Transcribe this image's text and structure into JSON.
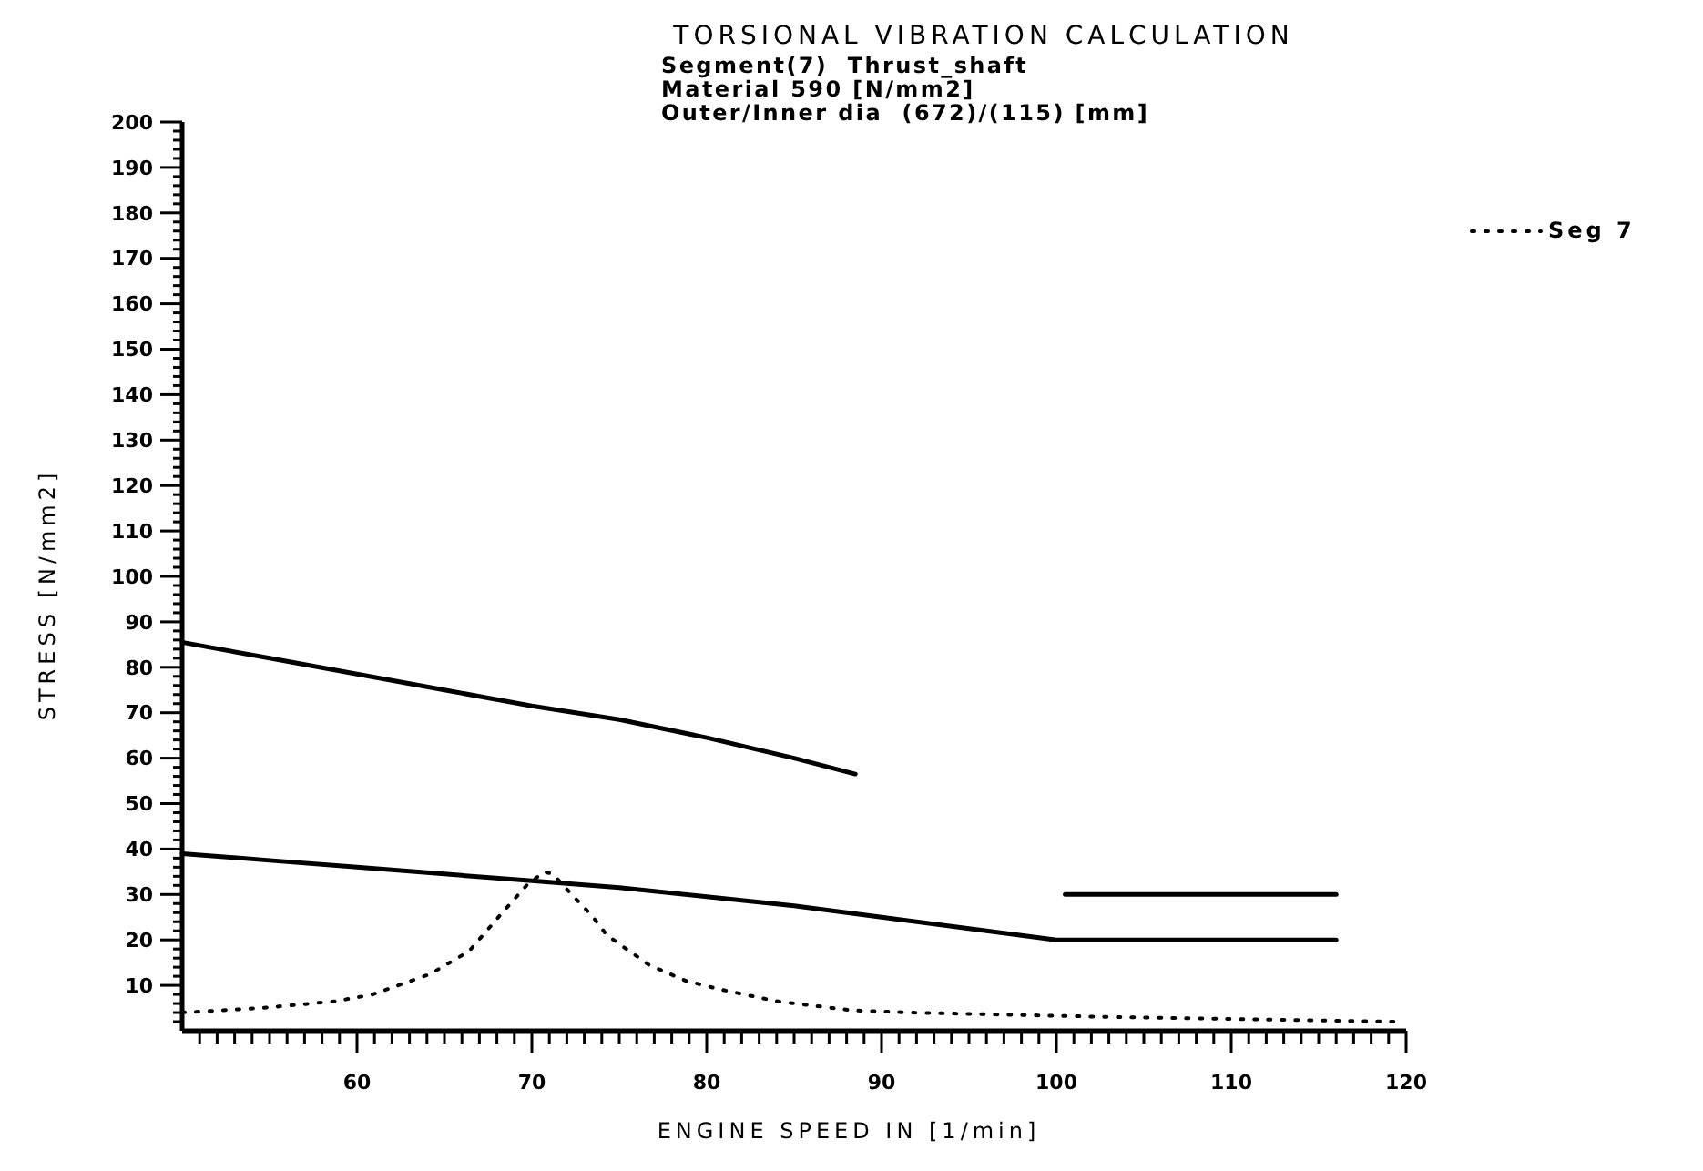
{
  "chart_data": {
    "type": "line",
    "title": "TORSIONAL VIBRATION CALCULATION",
    "subtitle": "Segment(7)  Thrust_shaft\nMaterial 590 [N/mm2]\nOuter/Inner dia  (672)/(115) [mm]",
    "xlabel": "ENGINE SPEED IN [1/min]",
    "ylabel": "STRESS [N/mm2]",
    "xlim": [
      50,
      120
    ],
    "ylim": [
      0,
      200
    ],
    "xticks": [
      {
        "value": 51,
        "label": null
      },
      {
        "value": 52,
        "label": null
      },
      {
        "value": 53,
        "label": null
      },
      {
        "value": 54,
        "label": null
      },
      {
        "value": 55,
        "label": null
      },
      {
        "value": 56,
        "label": null
      },
      {
        "value": 57,
        "label": null
      },
      {
        "value": 58,
        "label": null
      },
      {
        "value": 59,
        "label": null
      },
      60,
      {
        "value": 61,
        "label": null
      },
      {
        "value": 62,
        "label": null
      },
      {
        "value": 63,
        "label": null
      },
      {
        "value": 64,
        "label": null
      },
      {
        "value": 65,
        "label": null
      },
      {
        "value": 66,
        "label": null
      },
      {
        "value": 67,
        "label": null
      },
      {
        "value": 68,
        "label": null
      },
      {
        "value": 69,
        "label": null
      },
      70,
      {
        "value": 71,
        "label": null
      },
      {
        "value": 72,
        "label": null
      },
      {
        "value": 73,
        "label": null
      },
      {
        "value": 74,
        "label": null
      },
      {
        "value": 75,
        "label": null
      },
      {
        "value": 76,
        "label": null
      },
      {
        "value": 77,
        "label": null
      },
      {
        "value": 78,
        "label": null
      },
      {
        "value": 79,
        "label": null
      },
      80,
      {
        "value": 81,
        "label": null
      },
      {
        "value": 82,
        "label": null
      },
      {
        "value": 83,
        "label": null
      },
      {
        "value": 84,
        "label": null
      },
      {
        "value": 85,
        "label": null
      },
      {
        "value": 86,
        "label": null
      },
      {
        "value": 87,
        "label": null
      },
      {
        "value": 88,
        "label": null
      },
      {
        "value": 89,
        "label": null
      },
      90,
      {
        "value": 91,
        "label": null
      },
      {
        "value": 92,
        "label": null
      },
      {
        "value": 93,
        "label": null
      },
      {
        "value": 94,
        "label": null
      },
      {
        "value": 95,
        "label": null
      },
      {
        "value": 96,
        "label": null
      },
      {
        "value": 97,
        "label": null
      },
      {
        "value": 98,
        "label": null
      },
      {
        "value": 99,
        "label": null
      },
      100,
      {
        "value": 101,
        "label": null
      },
      {
        "value": 102,
        "label": null
      },
      {
        "value": 103,
        "label": null
      },
      {
        "value": 104,
        "label": null
      },
      {
        "value": 105,
        "label": null
      },
      {
        "value": 106,
        "label": null
      },
      {
        "value": 107,
        "label": null
      },
      {
        "value": 108,
        "label": null
      },
      {
        "value": 109,
        "label": null
      },
      110,
      {
        "value": 111,
        "label": null
      },
      {
        "value": 112,
        "label": null
      },
      {
        "value": 113,
        "label": null
      },
      {
        "value": 114,
        "label": null
      },
      {
        "value": 115,
        "label": null
      },
      {
        "value": 116,
        "label": null
      },
      {
        "value": 117,
        "label": null
      },
      {
        "value": 118,
        "label": null
      },
      {
        "value": 119,
        "label": null
      },
      120
    ],
    "yticks": [
      {
        "value": 2,
        "label": null
      },
      {
        "value": 4,
        "label": null
      },
      {
        "value": 6,
        "label": null
      },
      {
        "value": 8,
        "label": null
      },
      10,
      {
        "value": 12,
        "label": null
      },
      {
        "value": 14,
        "label": null
      },
      {
        "value": 16,
        "label": null
      },
      {
        "value": 18,
        "label": null
      },
      20,
      {
        "value": 22,
        "label": null
      },
      {
        "value": 24,
        "label": null
      },
      {
        "value": 26,
        "label": null
      },
      {
        "value": 28,
        "label": null
      },
      30,
      {
        "value": 32,
        "label": null
      },
      {
        "value": 34,
        "label": null
      },
      {
        "value": 36,
        "label": null
      },
      {
        "value": 38,
        "label": null
      },
      40,
      {
        "value": 42,
        "label": null
      },
      {
        "value": 44,
        "label": null
      },
      {
        "value": 46,
        "label": null
      },
      {
        "value": 48,
        "label": null
      },
      50,
      {
        "value": 52,
        "label": null
      },
      {
        "value": 54,
        "label": null
      },
      {
        "value": 56,
        "label": null
      },
      {
        "value": 58,
        "label": null
      },
      60,
      {
        "value": 62,
        "label": null
      },
      {
        "value": 64,
        "label": null
      },
      {
        "value": 66,
        "label": null
      },
      {
        "value": 68,
        "label": null
      },
      70,
      {
        "value": 72,
        "label": null
      },
      {
        "value": 74,
        "label": null
      },
      {
        "value": 76,
        "label": null
      },
      {
        "value": 78,
        "label": null
      },
      80,
      {
        "value": 82,
        "label": null
      },
      {
        "value": 84,
        "label": null
      },
      {
        "value": 86,
        "label": null
      },
      {
        "value": 88,
        "label": null
      },
      90,
      {
        "value": 92,
        "label": null
      },
      {
        "value": 94,
        "label": null
      },
      {
        "value": 96,
        "label": null
      },
      {
        "value": 98,
        "label": null
      },
      100,
      {
        "value": 102,
        "label": null
      },
      {
        "value": 104,
        "label": null
      },
      {
        "value": 106,
        "label": null
      },
      {
        "value": 108,
        "label": null
      },
      110,
      {
        "value": 112,
        "label": null
      },
      {
        "value": 114,
        "label": null
      },
      {
        "value": 116,
        "label": null
      },
      {
        "value": 118,
        "label": null
      },
      120,
      {
        "value": 122,
        "label": null
      },
      {
        "value": 124,
        "label": null
      },
      {
        "value": 126,
        "label": null
      },
      {
        "value": 128,
        "label": null
      },
      130,
      {
        "value": 132,
        "label": null
      },
      {
        "value": 134,
        "label": null
      },
      {
        "value": 136,
        "label": null
      },
      {
        "value": 138,
        "label": null
      },
      140,
      {
        "value": 142,
        "label": null
      },
      {
        "value": 144,
        "label": null
      },
      {
        "value": 146,
        "label": null
      },
      {
        "value": 148,
        "label": null
      },
      150,
      {
        "value": 152,
        "label": null
      },
      {
        "value": 154,
        "label": null
      },
      {
        "value": 156,
        "label": null
      },
      {
        "value": 158,
        "label": null
      },
      160,
      {
        "value": 162,
        "label": null
      },
      {
        "value": 164,
        "label": null
      },
      {
        "value": 166,
        "label": null
      },
      {
        "value": 168,
        "label": null
      },
      170,
      {
        "value": 172,
        "label": null
      },
      {
        "value": 174,
        "label": null
      },
      {
        "value": 176,
        "label": null
      },
      {
        "value": 178,
        "label": null
      },
      180,
      {
        "value": 182,
        "label": null
      },
      {
        "value": 184,
        "label": null
      },
      {
        "value": 186,
        "label": null
      },
      {
        "value": 188,
        "label": null
      },
      190,
      {
        "value": 192,
        "label": null
      },
      {
        "value": 194,
        "label": null
      },
      {
        "value": 196,
        "label": null
      },
      {
        "value": 198,
        "label": null
      },
      200
    ],
    "legend": "right",
    "marker": "none",
    "series": [
      {
        "color": "#000000",
        "line_style": "solid",
        "x": [
          50,
          55,
          60,
          65,
          70,
          75,
          80,
          85,
          88.5
        ],
        "values": [
          85.5,
          82,
          78.5,
          75,
          71.5,
          68.5,
          64.5,
          60,
          56.5
        ]
      },
      {
        "color": "#000000",
        "line_style": "solid",
        "x": [
          50,
          55,
          60,
          65,
          70,
          75,
          80,
          85,
          90,
          95,
          100,
          116
        ],
        "values": [
          39,
          37.5,
          36,
          34.5,
          33,
          31.5,
          29.5,
          27.5,
          25,
          22.5,
          20,
          20
        ]
      },
      {
        "color": "#000000",
        "line_style": "solid",
        "x": [
          100.5,
          116
        ],
        "values": [
          30,
          30
        ]
      },
      {
        "name": "Seg 7",
        "color": "#000000",
        "line_style": "dotted",
        "x": [
          50,
          54.5,
          58.8,
          60.9,
          64.2,
          66.4,
          68.2,
          69.7,
          70.7,
          71.2,
          72.4,
          73.4,
          74.3,
          76.7,
          78.8,
          80.9,
          84,
          88.3,
          91.6,
          103.5,
          119.4
        ],
        "values": [
          4,
          5,
          6.5,
          8,
          12.5,
          17.5,
          25.5,
          32,
          35,
          34.5,
          29.5,
          25.5,
          21,
          14.5,
          11,
          9,
          6.5,
          4.5,
          4,
          3,
          2
        ]
      }
    ]
  }
}
